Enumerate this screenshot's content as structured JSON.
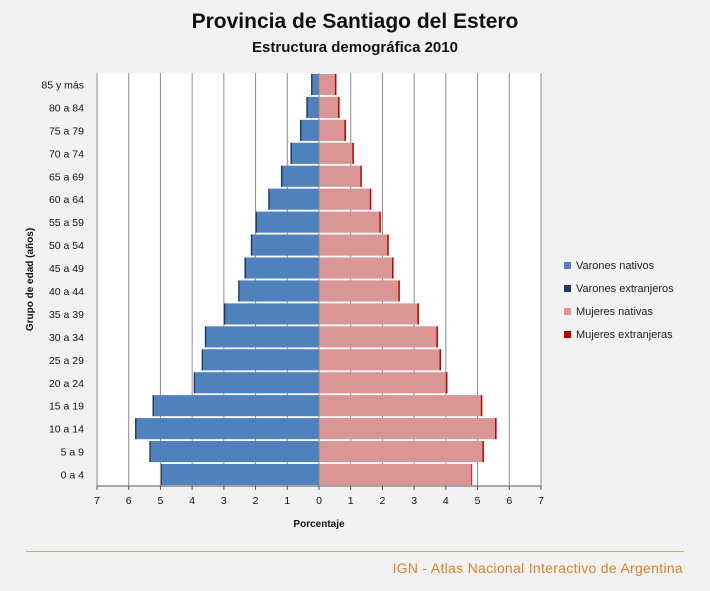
{
  "header": {
    "title": "Provincia de Santiago del Estero",
    "subtitle": "Estructura demográfica 2010"
  },
  "footer": {
    "text": "IGN - Atlas Nacional Interactivo de Argentina"
  },
  "chart_data": {
    "type": "bar",
    "orientation": "horizontal-pyramid",
    "title": "Provincia de Santiago del Estero",
    "subtitle": "Estructura demográfica 2010",
    "xlabel": "Porcentaje",
    "ylabel": "Grupo de edad (años)",
    "xlim": [
      -7,
      7
    ],
    "xticks": [
      "7",
      "6",
      "5",
      "4",
      "3",
      "2",
      "1",
      "0",
      "1",
      "2",
      "3",
      "4",
      "5",
      "6",
      "7"
    ],
    "grid": true,
    "legend_position": "right",
    "categories": [
      "85 y más",
      "80 a 84",
      "75 a 79",
      "70 a 74",
      "65 a 69",
      "60 a 64",
      "55 a 59",
      "50 a 54",
      "45 a 49",
      "40 a 44",
      "35 a 39",
      "30 a 34",
      "25 a 29",
      "20 a 24",
      "15 a 19",
      "10 a 14",
      "5 a 9",
      "0 a 4"
    ],
    "series": [
      {
        "name": "Varones nativos",
        "color": "#4f81bd",
        "side": "left",
        "values": [
          0.2,
          0.35,
          0.55,
          0.85,
          1.15,
          1.55,
          1.95,
          2.1,
          2.3,
          2.5,
          2.95,
          3.55,
          3.65,
          3.9,
          5.2,
          5.75,
          5.3,
          4.95
        ]
      },
      {
        "name": "Varones extranjeros",
        "color": "#1f3864",
        "side": "left",
        "values": [
          0.05,
          0.05,
          0.05,
          0.05,
          0.05,
          0.05,
          0.05,
          0.05,
          0.05,
          0.05,
          0.05,
          0.05,
          0.05,
          0.05,
          0.05,
          0.05,
          0.05,
          0.03
        ]
      },
      {
        "name": "Mujeres nativas",
        "color": "#d99694",
        "side": "right",
        "values": [
          0.5,
          0.6,
          0.8,
          1.05,
          1.3,
          1.6,
          1.9,
          2.15,
          2.3,
          2.5,
          3.1,
          3.7,
          3.8,
          4.0,
          5.1,
          5.55,
          5.15,
          4.8
        ]
      },
      {
        "name": "Mujeres extranjeras",
        "color": "#c00000",
        "side": "right",
        "values": [
          0.05,
          0.05,
          0.05,
          0.05,
          0.05,
          0.05,
          0.05,
          0.05,
          0.05,
          0.05,
          0.05,
          0.05,
          0.05,
          0.05,
          0.05,
          0.05,
          0.05,
          0.03
        ]
      }
    ]
  }
}
